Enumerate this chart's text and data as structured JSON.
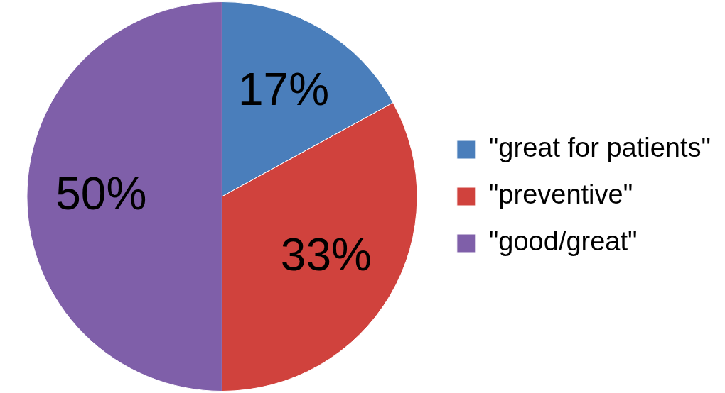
{
  "chart_data": {
    "type": "pie",
    "categories": [
      "\"great for patients\"",
      "\"preventive\"",
      "\"good/great\""
    ],
    "values": [
      17,
      33,
      50
    ],
    "colors": [
      "#4a7ebb",
      "#d0423d",
      "#7f5fa9"
    ],
    "value_labels": [
      "17%",
      "33%",
      "50%"
    ],
    "legend": "right"
  }
}
